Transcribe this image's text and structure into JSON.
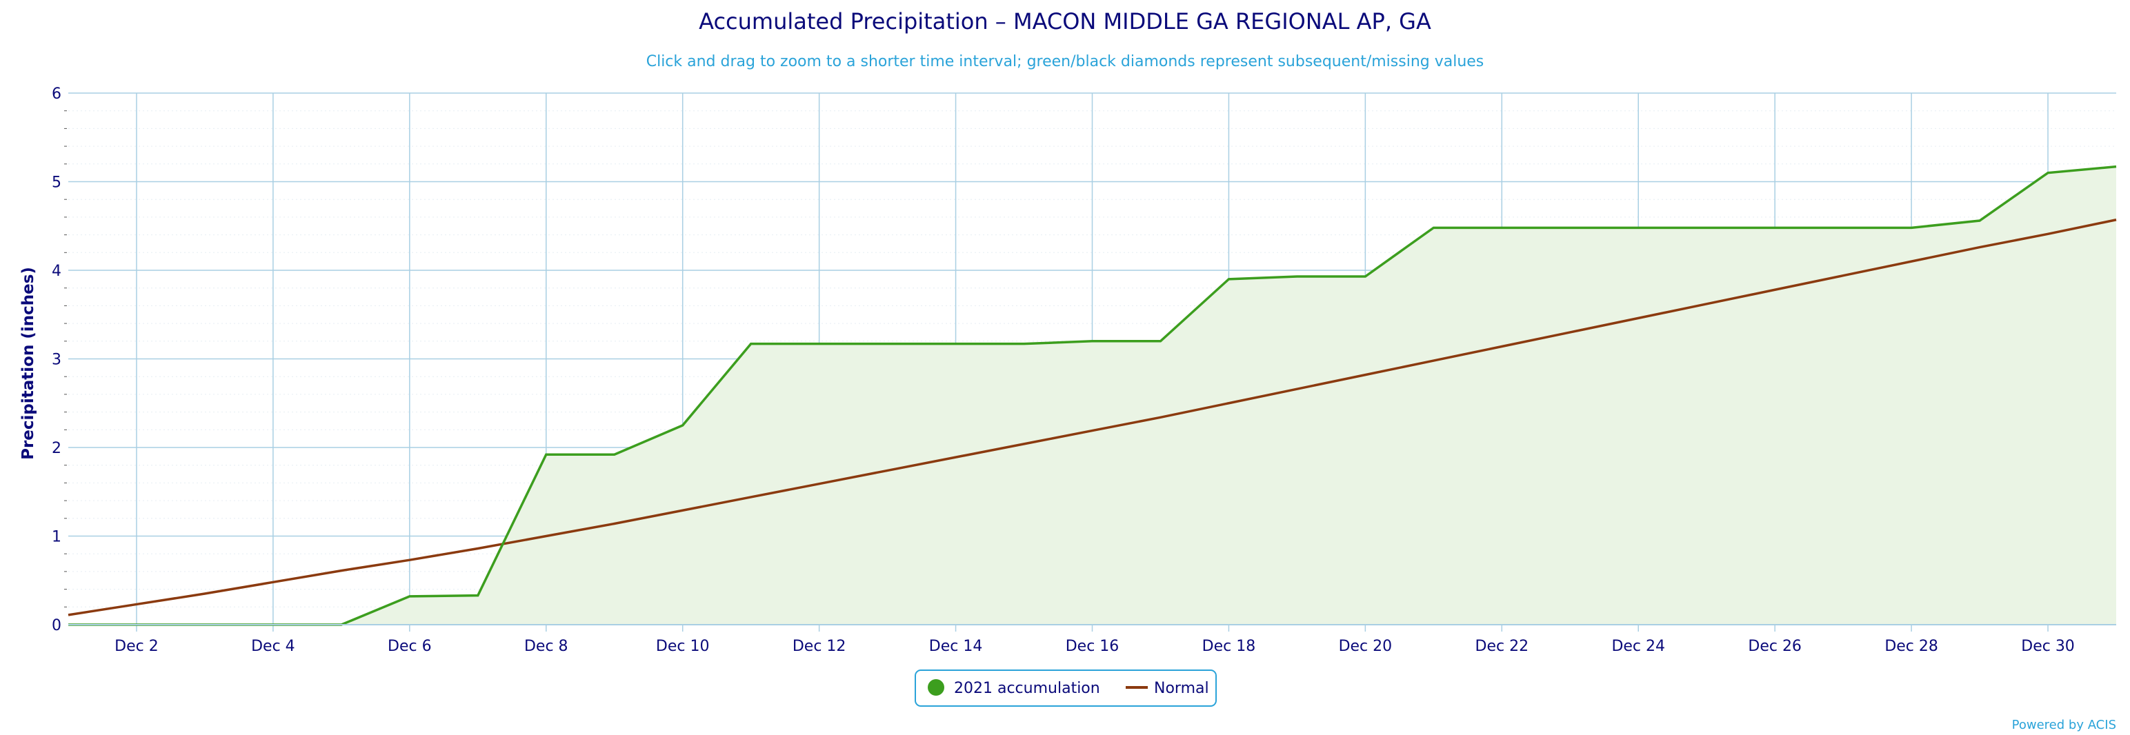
{
  "chart_data": {
    "type": "area",
    "title": "Accumulated Precipitation – MACON MIDDLE GA REGIONAL AP, GA",
    "subtitle": "Click and drag to zoom to a shorter time interval; green/black diamonds represent subsequent/missing values",
    "ylabel": "Precipitation (inches)",
    "xlabel": "",
    "ylim": [
      0,
      6
    ],
    "xlim": [
      "2021-12-01",
      "2021-12-31"
    ],
    "y_ticks": [
      0,
      1,
      2,
      3,
      4,
      5,
      6
    ],
    "x_ticks": [
      {
        "date": "2021-12-02",
        "label": "Dec 2"
      },
      {
        "date": "2021-12-04",
        "label": "Dec 4"
      },
      {
        "date": "2021-12-06",
        "label": "Dec 6"
      },
      {
        "date": "2021-12-08",
        "label": "Dec 8"
      },
      {
        "date": "2021-12-10",
        "label": "Dec 10"
      },
      {
        "date": "2021-12-12",
        "label": "Dec 12"
      },
      {
        "date": "2021-12-14",
        "label": "Dec 14"
      },
      {
        "date": "2021-12-16",
        "label": "Dec 16"
      },
      {
        "date": "2021-12-18",
        "label": "Dec 18"
      },
      {
        "date": "2021-12-20",
        "label": "Dec 20"
      },
      {
        "date": "2021-12-22",
        "label": "Dec 22"
      },
      {
        "date": "2021-12-24",
        "label": "Dec 24"
      },
      {
        "date": "2021-12-26",
        "label": "Dec 26"
      },
      {
        "date": "2021-12-28",
        "label": "Dec 28"
      },
      {
        "date": "2021-12-30",
        "label": "Dec 30"
      }
    ],
    "x": [
      "2021-12-01",
      "2021-12-02",
      "2021-12-03",
      "2021-12-04",
      "2021-12-05",
      "2021-12-06",
      "2021-12-07",
      "2021-12-08",
      "2021-12-09",
      "2021-12-10",
      "2021-12-11",
      "2021-12-12",
      "2021-12-13",
      "2021-12-14",
      "2021-12-15",
      "2021-12-16",
      "2021-12-17",
      "2021-12-18",
      "2021-12-19",
      "2021-12-20",
      "2021-12-21",
      "2021-12-22",
      "2021-12-23",
      "2021-12-24",
      "2021-12-25",
      "2021-12-26",
      "2021-12-27",
      "2021-12-28",
      "2021-12-29",
      "2021-12-30",
      "2021-12-31"
    ],
    "series": [
      {
        "name": "2021 accumulation",
        "color": "#3c9e1e",
        "fill": "#eaf4e4",
        "values": [
          0,
          0,
          0,
          0,
          0,
          0.32,
          0.33,
          1.92,
          1.92,
          2.25,
          3.17,
          3.17,
          3.17,
          3.17,
          3.17,
          3.2,
          3.2,
          3.9,
          3.93,
          3.93,
          4.48,
          4.48,
          4.48,
          4.48,
          4.48,
          4.48,
          4.48,
          4.48,
          4.56,
          5.1,
          5.17
        ]
      },
      {
        "name": "Normal",
        "color": "#8b3a0f",
        "values": [
          0.11,
          0.23,
          0.35,
          0.48,
          0.61,
          0.73,
          0.86,
          1.0,
          1.14,
          1.29,
          1.44,
          1.59,
          1.74,
          1.89,
          2.04,
          2.19,
          2.34,
          2.5,
          2.66,
          2.82,
          2.98,
          3.14,
          3.3,
          3.46,
          3.62,
          3.78,
          3.94,
          4.1,
          4.26,
          4.41,
          4.57
        ]
      }
    ],
    "grid": true,
    "legend": "bottom-center",
    "credits": "Powered by ACIS"
  },
  "colors": {
    "title": "#0a0a7a",
    "subtitle": "#2aa3d9",
    "axis_text": "#0a0a7a",
    "grid": "#a9cfe3",
    "credits": "#2aa3d9"
  }
}
